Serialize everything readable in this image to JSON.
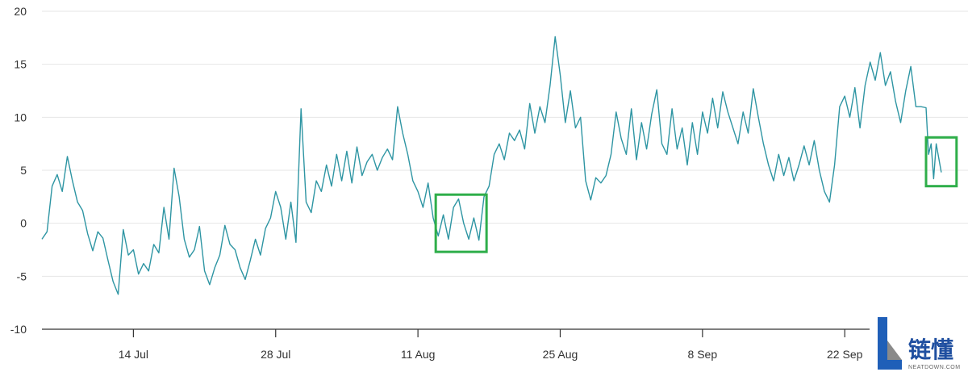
{
  "chart_data": {
    "type": "line",
    "title": "",
    "xlabel": "",
    "ylabel": "",
    "x_range": [
      "2024-07-05",
      "2024-09-30"
    ],
    "ylim": [
      -10,
      20
    ],
    "y_ticks": [
      -10,
      -5,
      0,
      5,
      10,
      15,
      20
    ],
    "x_ticks": [
      {
        "date": "2024-07-14",
        "label": "14 Jul"
      },
      {
        "date": "2024-07-28",
        "label": "28 Jul"
      },
      {
        "date": "2024-08-11",
        "label": "11 Aug"
      },
      {
        "date": "2024-08-25",
        "label": "25 Aug"
      },
      {
        "date": "2024-09-08",
        "label": "8 Sep"
      },
      {
        "date": "2024-09-22",
        "label": "22 Sep"
      }
    ],
    "grid": "horizontal",
    "legend": "none",
    "line_color": "#2e95a3",
    "highlight_color": "#2fae4a",
    "series": [
      {
        "name": "",
        "points": [
          [
            "2024-07-05 00:00",
            -1.5
          ],
          [
            "2024-07-05 12:00",
            -0.8
          ],
          [
            "2024-07-06 00:00",
            3.5
          ],
          [
            "2024-07-06 12:00",
            4.6
          ],
          [
            "2024-07-07 00:00",
            3.0
          ],
          [
            "2024-07-07 12:00",
            6.3
          ],
          [
            "2024-07-08 00:00",
            4.0
          ],
          [
            "2024-07-08 12:00",
            2.0
          ],
          [
            "2024-07-09 00:00",
            1.2
          ],
          [
            "2024-07-09 12:00",
            -1.0
          ],
          [
            "2024-07-10 00:00",
            -2.6
          ],
          [
            "2024-07-10 12:00",
            -0.8
          ],
          [
            "2024-07-11 00:00",
            -1.4
          ],
          [
            "2024-07-11 12:00",
            -3.5
          ],
          [
            "2024-07-12 00:00",
            -5.5
          ],
          [
            "2024-07-12 12:00",
            -6.7
          ],
          [
            "2024-07-13 00:00",
            -0.6
          ],
          [
            "2024-07-13 12:00",
            -3.0
          ],
          [
            "2024-07-14 00:00",
            -2.5
          ],
          [
            "2024-07-14 12:00",
            -4.8
          ],
          [
            "2024-07-15 00:00",
            -3.8
          ],
          [
            "2024-07-15 12:00",
            -4.5
          ],
          [
            "2024-07-16 00:00",
            -2.0
          ],
          [
            "2024-07-16 12:00",
            -2.8
          ],
          [
            "2024-07-17 00:00",
            1.5
          ],
          [
            "2024-07-17 12:00",
            -1.5
          ],
          [
            "2024-07-18 00:00",
            5.2
          ],
          [
            "2024-07-18 12:00",
            2.5
          ],
          [
            "2024-07-19 00:00",
            -1.5
          ],
          [
            "2024-07-19 12:00",
            -3.2
          ],
          [
            "2024-07-20 00:00",
            -2.5
          ],
          [
            "2024-07-20 12:00",
            -0.3
          ],
          [
            "2024-07-21 00:00",
            -4.5
          ],
          [
            "2024-07-21 12:00",
            -5.8
          ],
          [
            "2024-07-22 00:00",
            -4.2
          ],
          [
            "2024-07-22 12:00",
            -3.0
          ],
          [
            "2024-07-23 00:00",
            -0.2
          ],
          [
            "2024-07-23 12:00",
            -2.0
          ],
          [
            "2024-07-24 00:00",
            -2.5
          ],
          [
            "2024-07-24 12:00",
            -4.2
          ],
          [
            "2024-07-25 00:00",
            -5.3
          ],
          [
            "2024-07-25 12:00",
            -3.5
          ],
          [
            "2024-07-26 00:00",
            -1.5
          ],
          [
            "2024-07-26 12:00",
            -3.0
          ],
          [
            "2024-07-27 00:00",
            -0.5
          ],
          [
            "2024-07-27 12:00",
            0.5
          ],
          [
            "2024-07-28 00:00",
            3.0
          ],
          [
            "2024-07-28 12:00",
            1.5
          ],
          [
            "2024-07-29 00:00",
            -1.5
          ],
          [
            "2024-07-29 12:00",
            2.0
          ],
          [
            "2024-07-30 00:00",
            -1.8
          ],
          [
            "2024-07-30 12:00",
            10.8
          ],
          [
            "2024-07-31 00:00",
            2.0
          ],
          [
            "2024-07-31 12:00",
            1.0
          ],
          [
            "2024-08-01 00:00",
            4.0
          ],
          [
            "2024-08-01 12:00",
            3.0
          ],
          [
            "2024-08-02 00:00",
            5.5
          ],
          [
            "2024-08-02 12:00",
            3.5
          ],
          [
            "2024-08-03 00:00",
            6.5
          ],
          [
            "2024-08-03 12:00",
            4.0
          ],
          [
            "2024-08-04 00:00",
            6.8
          ],
          [
            "2024-08-04 12:00",
            3.8
          ],
          [
            "2024-08-05 00:00",
            7.2
          ],
          [
            "2024-08-05 12:00",
            4.5
          ],
          [
            "2024-08-06 00:00",
            5.8
          ],
          [
            "2024-08-06 12:00",
            6.5
          ],
          [
            "2024-08-07 00:00",
            5.0
          ],
          [
            "2024-08-07 12:00",
            6.2
          ],
          [
            "2024-08-08 00:00",
            7.0
          ],
          [
            "2024-08-08 12:00",
            6.0
          ],
          [
            "2024-08-09 00:00",
            11.0
          ],
          [
            "2024-08-09 12:00",
            8.5
          ],
          [
            "2024-08-10 00:00",
            6.5
          ],
          [
            "2024-08-10 12:00",
            4.0
          ],
          [
            "2024-08-11 00:00",
            3.0
          ],
          [
            "2024-08-11 12:00",
            1.5
          ],
          [
            "2024-08-12 00:00",
            3.8
          ],
          [
            "2024-08-12 12:00",
            0.5
          ],
          [
            "2024-08-13 00:00",
            -1.2
          ],
          [
            "2024-08-13 12:00",
            0.8
          ],
          [
            "2024-08-14 00:00",
            -1.5
          ],
          [
            "2024-08-14 12:00",
            1.5
          ],
          [
            "2024-08-15 00:00",
            2.3
          ],
          [
            "2024-08-15 12:00",
            0.0
          ],
          [
            "2024-08-16 00:00",
            -1.5
          ],
          [
            "2024-08-16 12:00",
            0.5
          ],
          [
            "2024-08-17 00:00",
            -1.6
          ],
          [
            "2024-08-17 12:00",
            2.5
          ],
          [
            "2024-08-18 00:00",
            3.5
          ],
          [
            "2024-08-18 12:00",
            6.5
          ],
          [
            "2024-08-19 00:00",
            7.5
          ],
          [
            "2024-08-19 12:00",
            6.0
          ],
          [
            "2024-08-20 00:00",
            8.5
          ],
          [
            "2024-08-20 12:00",
            7.8
          ],
          [
            "2024-08-21 00:00",
            8.8
          ],
          [
            "2024-08-21 12:00",
            7.0
          ],
          [
            "2024-08-22 00:00",
            11.3
          ],
          [
            "2024-08-22 12:00",
            8.5
          ],
          [
            "2024-08-23 00:00",
            11.0
          ],
          [
            "2024-08-23 12:00",
            9.5
          ],
          [
            "2024-08-24 00:00",
            13.0
          ],
          [
            "2024-08-24 12:00",
            17.6
          ],
          [
            "2024-08-25 00:00",
            14.0
          ],
          [
            "2024-08-25 12:00",
            9.5
          ],
          [
            "2024-08-26 00:00",
            12.5
          ],
          [
            "2024-08-26 12:00",
            9.0
          ],
          [
            "2024-08-27 00:00",
            10.0
          ],
          [
            "2024-08-27 12:00",
            4.0
          ],
          [
            "2024-08-28 00:00",
            2.2
          ],
          [
            "2024-08-28 12:00",
            4.3
          ],
          [
            "2024-08-29 00:00",
            3.8
          ],
          [
            "2024-08-29 12:00",
            4.5
          ],
          [
            "2024-08-30 00:00",
            6.5
          ],
          [
            "2024-08-30 12:00",
            10.5
          ],
          [
            "2024-08-31 00:00",
            8.0
          ],
          [
            "2024-08-31 12:00",
            6.5
          ],
          [
            "2024-09-01 00:00",
            10.8
          ],
          [
            "2024-09-01 12:00",
            6.0
          ],
          [
            "2024-09-02 00:00",
            9.5
          ],
          [
            "2024-09-02 12:00",
            7.0
          ],
          [
            "2024-09-03 00:00",
            10.3
          ],
          [
            "2024-09-03 12:00",
            12.6
          ],
          [
            "2024-09-04 00:00",
            7.5
          ],
          [
            "2024-09-04 12:00",
            6.5
          ],
          [
            "2024-09-05 00:00",
            10.8
          ],
          [
            "2024-09-05 12:00",
            7.0
          ],
          [
            "2024-09-06 00:00",
            9.0
          ],
          [
            "2024-09-06 12:00",
            5.5
          ],
          [
            "2024-09-07 00:00",
            9.5
          ],
          [
            "2024-09-07 12:00",
            6.5
          ],
          [
            "2024-09-08 00:00",
            10.5
          ],
          [
            "2024-09-08 12:00",
            8.5
          ],
          [
            "2024-09-09 00:00",
            11.8
          ],
          [
            "2024-09-09 12:00",
            9.0
          ],
          [
            "2024-09-10 00:00",
            12.4
          ],
          [
            "2024-09-10 12:00",
            10.5
          ],
          [
            "2024-09-11 00:00",
            9.0
          ],
          [
            "2024-09-11 12:00",
            7.5
          ],
          [
            "2024-09-12 00:00",
            10.5
          ],
          [
            "2024-09-12 12:00",
            8.5
          ],
          [
            "2024-09-13 00:00",
            12.7
          ],
          [
            "2024-09-13 12:00",
            10.0
          ],
          [
            "2024-09-14 00:00",
            7.5
          ],
          [
            "2024-09-14 12:00",
            5.5
          ],
          [
            "2024-09-15 00:00",
            4.0
          ],
          [
            "2024-09-15 12:00",
            6.5
          ],
          [
            "2024-09-16 00:00",
            4.5
          ],
          [
            "2024-09-16 12:00",
            6.2
          ],
          [
            "2024-09-17 00:00",
            4.0
          ],
          [
            "2024-09-17 12:00",
            5.5
          ],
          [
            "2024-09-18 00:00",
            7.3
          ],
          [
            "2024-09-18 12:00",
            5.5
          ],
          [
            "2024-09-19 00:00",
            7.8
          ],
          [
            "2024-09-19 12:00",
            5.0
          ],
          [
            "2024-09-20 00:00",
            3.0
          ],
          [
            "2024-09-20 12:00",
            2.0
          ],
          [
            "2024-09-21 00:00",
            5.5
          ],
          [
            "2024-09-21 12:00",
            11.0
          ],
          [
            "2024-09-22 00:00",
            12.0
          ],
          [
            "2024-09-22 12:00",
            10.0
          ],
          [
            "2024-09-23 00:00",
            12.8
          ],
          [
            "2024-09-23 12:00",
            9.0
          ],
          [
            "2024-09-24 00:00",
            13.0
          ],
          [
            "2024-09-24 12:00",
            15.2
          ],
          [
            "2024-09-25 00:00",
            13.5
          ],
          [
            "2024-09-25 12:00",
            16.1
          ],
          [
            "2024-09-26 00:00",
            13.0
          ],
          [
            "2024-09-26 12:00",
            14.3
          ],
          [
            "2024-09-27 00:00",
            11.5
          ],
          [
            "2024-09-27 12:00",
            9.5
          ],
          [
            "2024-09-28 00:00",
            12.5
          ],
          [
            "2024-09-28 12:00",
            14.8
          ],
          [
            "2024-09-29 00:00",
            11.0
          ],
          [
            "2024-09-29 12:00",
            11.0
          ],
          [
            "2024-09-30 00:00",
            10.9
          ],
          [
            "2024-09-30 06:00",
            6.5
          ],
          [
            "2024-09-30 12:00",
            7.5
          ],
          [
            "2024-09-30 18:00",
            4.2
          ],
          [
            "2024-10-01 00:00",
            7.5
          ],
          [
            "2024-10-01 12:00",
            4.8
          ]
        ]
      }
    ],
    "highlights": [
      {
        "x_start": "2024-08-12 18:00",
        "x_end": "2024-08-17 18:00",
        "y_min": -2.7,
        "y_max": 2.7
      },
      {
        "x_start": "2024-09-30 00:00",
        "x_end": "2024-10-03 00:00",
        "y_min": 3.5,
        "y_max": 8.1
      }
    ]
  },
  "logo": {
    "name": "链懂",
    "sub": "NEATDOWN.COM"
  }
}
